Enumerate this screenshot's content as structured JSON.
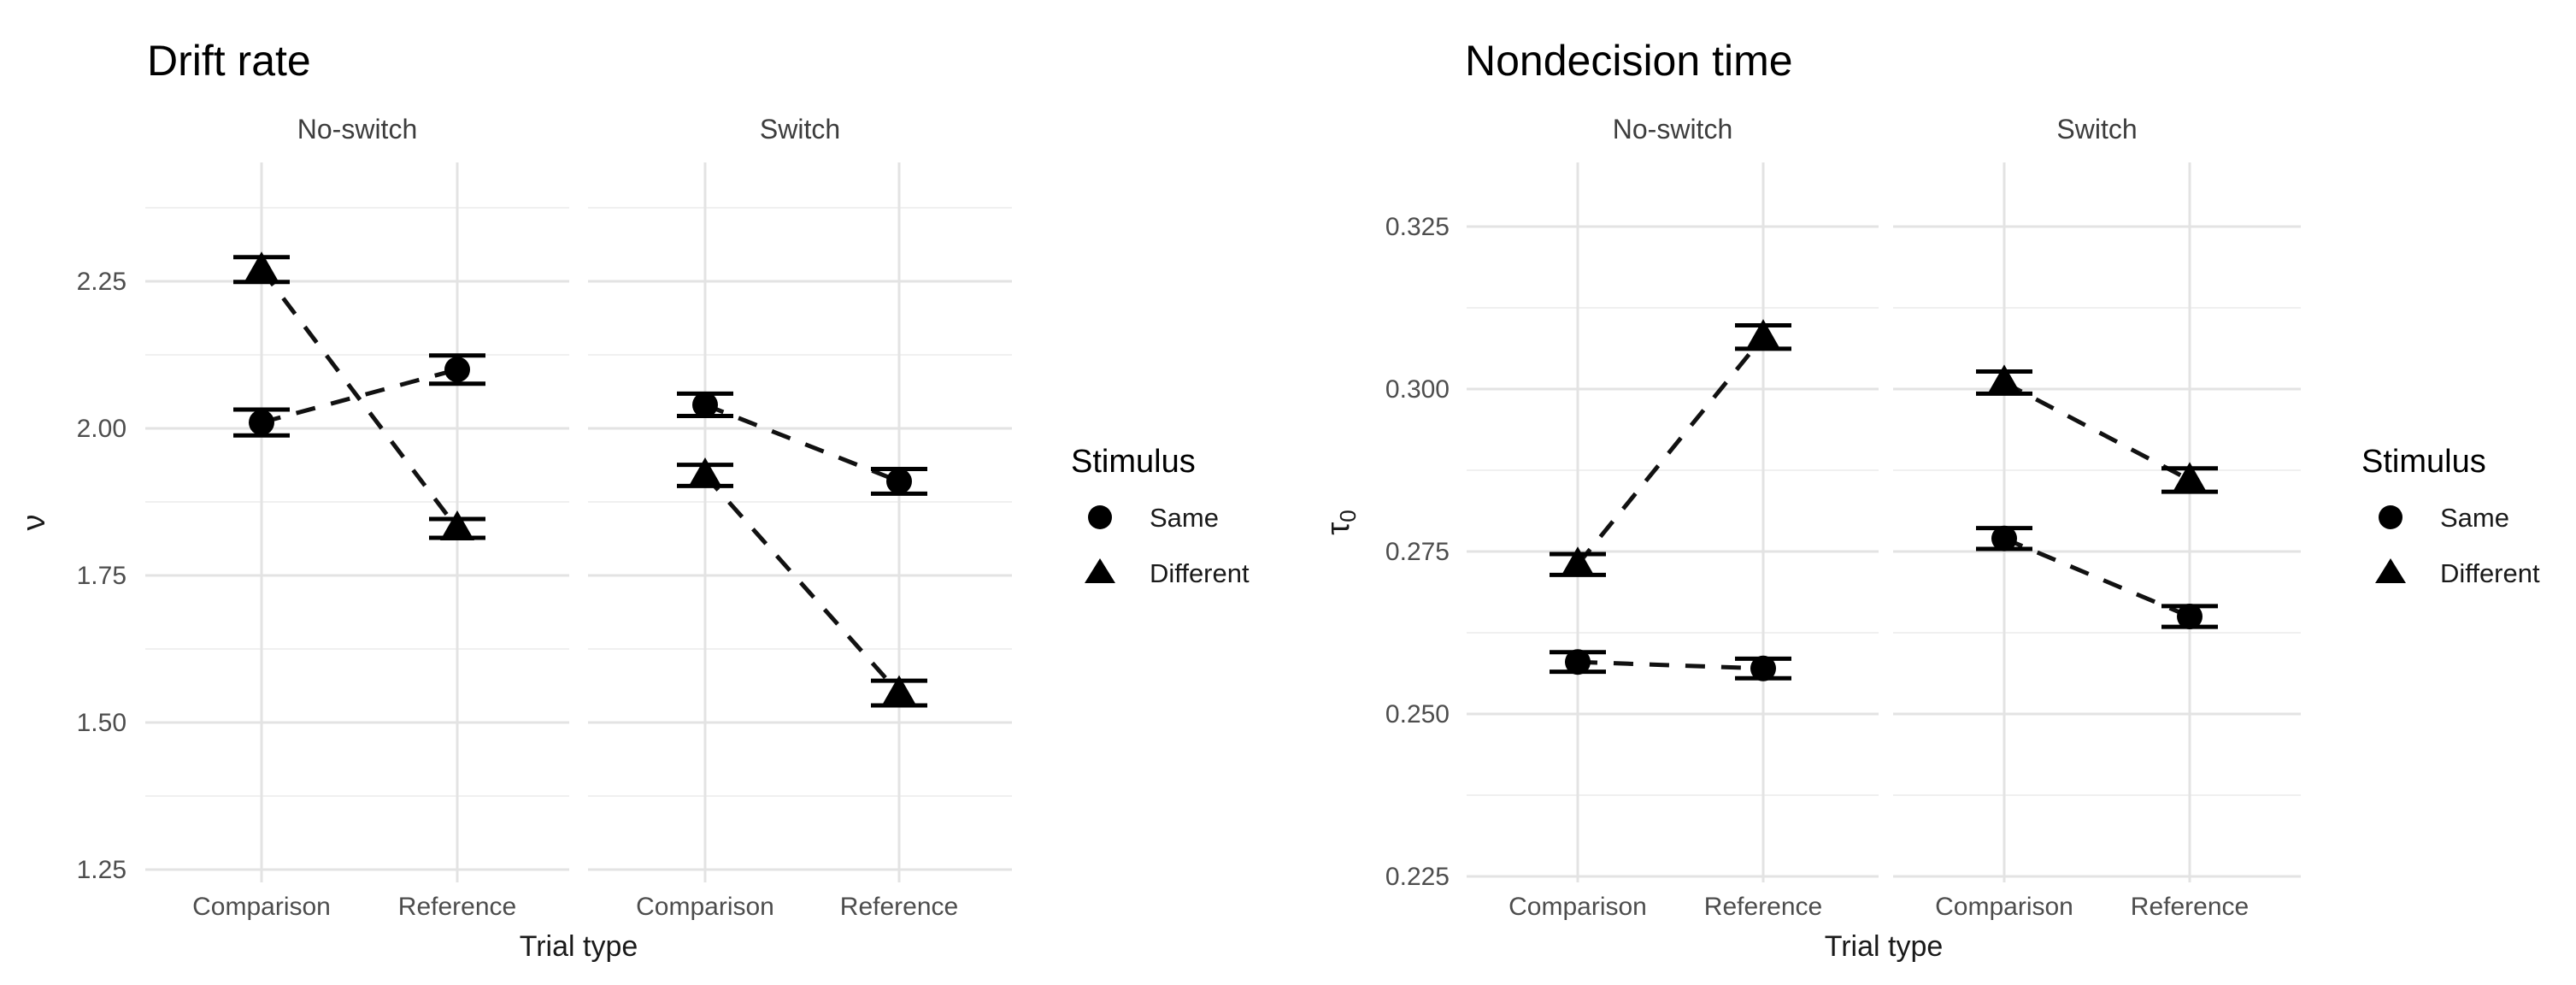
{
  "colors": {
    "background": "#ffffff",
    "title_text": "#000000",
    "axis_title_text": "#1a1a1a",
    "tick_text": "#4d4d4d",
    "strip_text": "#3d3d3d",
    "legend_text": "#1a1a1a",
    "grid_major": "#e3e3e3",
    "grid_minor": "#f0f0f0",
    "marker": "#000000",
    "line": "#111111"
  },
  "chart_data": [
    {
      "type": "line",
      "title": "Drift rate",
      "xlabel": "Trial type",
      "ylabel": "ν",
      "ylabel_sub": "",
      "facet_labels": [
        "No-switch",
        "Switch"
      ],
      "categories": [
        "Comparison",
        "Reference"
      ],
      "yticks": [
        {
          "v": 2.25,
          "label": "2.25"
        },
        {
          "v": 2.0,
          "label": "2.00"
        },
        {
          "v": 1.75,
          "label": "1.75"
        },
        {
          "v": 1.5,
          "label": "1.50"
        },
        {
          "v": 1.25,
          "label": "1.25"
        }
      ],
      "ylim": [
        1.24,
        2.45
      ],
      "grid": true,
      "line_style": "dashed",
      "legend": {
        "title": "Stimulus",
        "position": "right",
        "entries": [
          {
            "label": "Same",
            "marker": "circle"
          },
          {
            "label": "Different",
            "marker": "triangle"
          }
        ]
      },
      "series": [
        {
          "name": "Same",
          "marker": "circle",
          "facets": [
            {
              "facet": "No-switch",
              "values": [
                2.01,
                2.1
              ],
              "errors": [
                0.022,
                0.024
              ]
            },
            {
              "facet": "Switch",
              "values": [
                2.04,
                1.91
              ],
              "errors": [
                0.019,
                0.021
              ]
            }
          ]
        },
        {
          "name": "Different",
          "marker": "triangle",
          "facets": [
            {
              "facet": "No-switch",
              "values": [
                2.27,
                1.83
              ],
              "errors": [
                0.021,
                0.016
              ]
            },
            {
              "facet": "Switch",
              "values": [
                1.92,
                1.55
              ],
              "errors": [
                0.018,
                0.021
              ]
            }
          ]
        }
      ]
    },
    {
      "type": "line",
      "title": "Nondecision time",
      "xlabel": "Trial type",
      "ylabel": "τ",
      "ylabel_sub": "0",
      "facet_labels": [
        "No-switch",
        "Switch"
      ],
      "categories": [
        "Comparison",
        "Reference"
      ],
      "yticks": [
        {
          "v": 0.325,
          "label": "0.325"
        },
        {
          "v": 0.3,
          "label": "0.300"
        },
        {
          "v": 0.275,
          "label": "0.275"
        },
        {
          "v": 0.25,
          "label": "0.250"
        },
        {
          "v": 0.225,
          "label": "0.225"
        }
      ],
      "ylim": [
        0.223,
        0.334
      ],
      "grid": true,
      "line_style": "dashed",
      "legend": {
        "title": "Stimulus",
        "position": "right",
        "entries": [
          {
            "label": "Same",
            "marker": "circle"
          },
          {
            "label": "Different",
            "marker": "triangle"
          }
        ]
      },
      "series": [
        {
          "name": "Same",
          "marker": "circle",
          "facets": [
            {
              "facet": "No-switch",
              "values": [
                0.258,
                0.257
              ],
              "errors": [
                0.0015,
                0.0015
              ]
            },
            {
              "facet": "Switch",
              "values": [
                0.277,
                0.265
              ],
              "errors": [
                0.0016,
                0.0016
              ]
            }
          ]
        },
        {
          "name": "Different",
          "marker": "triangle",
          "facets": [
            {
              "facet": "No-switch",
              "values": [
                0.273,
                0.308
              ],
              "errors": [
                0.0016,
                0.0018
              ]
            },
            {
              "facet": "Switch",
              "values": [
                0.301,
                0.286
              ],
              "errors": [
                0.0017,
                0.0018
              ]
            }
          ]
        }
      ]
    }
  ]
}
